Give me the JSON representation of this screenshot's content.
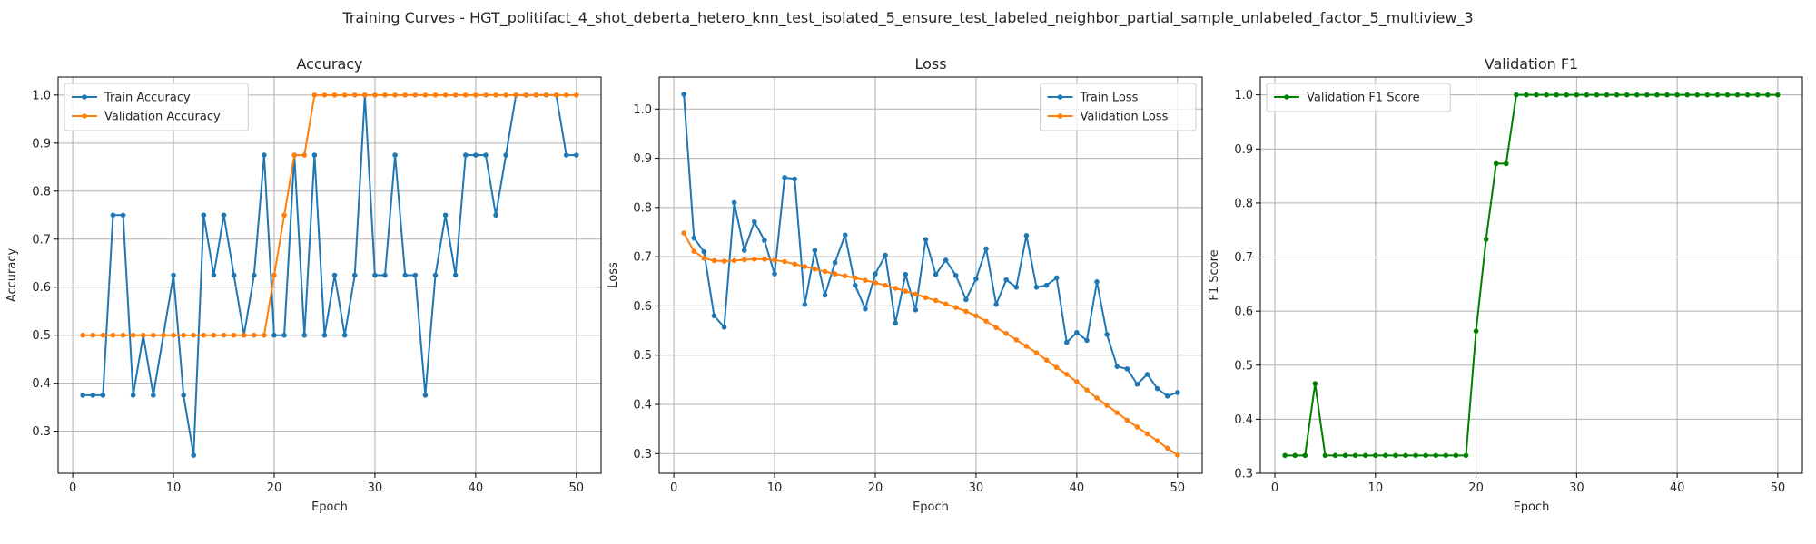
{
  "figure": {
    "suptitle": "Training Curves - HGT_politifact_4_shot_deberta_hetero_knn_test_isolated_5_ensure_test_labeled_neighbor_partial_sample_unlabeled_factor_5_multiview_3"
  },
  "colors": {
    "blue": "#1f77b4",
    "orange": "#ff7f0e",
    "green": "#008000"
  },
  "chart_data": [
    {
      "type": "line",
      "title": "Accuracy",
      "xlabel": "Epoch",
      "ylabel": "Accuracy",
      "xlim": [
        -1.45,
        52.45
      ],
      "ylim": [
        0.2125,
        1.0375
      ],
      "xticks": [
        0,
        10,
        20,
        30,
        40,
        50
      ],
      "yticks": [
        0.3,
        0.4,
        0.5,
        0.6,
        0.7,
        0.8,
        0.9,
        1.0
      ],
      "yticklabels": [
        "0.3",
        "0.4",
        "0.5",
        "0.6",
        "0.7",
        "0.8",
        "0.9",
        "1.0"
      ],
      "grid": true,
      "legend": "upper-left",
      "x": [
        1,
        2,
        3,
        4,
        5,
        6,
        7,
        8,
        9,
        10,
        11,
        12,
        13,
        14,
        15,
        16,
        17,
        18,
        19,
        20,
        21,
        22,
        23,
        24,
        25,
        26,
        27,
        28,
        29,
        30,
        31,
        32,
        33,
        34,
        35,
        36,
        37,
        38,
        39,
        40,
        41,
        42,
        43,
        44,
        45,
        46,
        47,
        48,
        49,
        50
      ],
      "series": [
        {
          "name": "Train Accuracy",
          "color": "#1f77b4",
          "values": [
            0.375,
            0.375,
            0.375,
            0.75,
            0.75,
            0.375,
            0.5,
            0.375,
            0.5,
            0.625,
            0.375,
            0.25,
            0.75,
            0.625,
            0.75,
            0.625,
            0.5,
            0.625,
            0.875,
            0.5,
            0.5,
            0.875,
            0.5,
            0.875,
            0.5,
            0.625,
            0.5,
            0.625,
            1.0,
            0.625,
            0.625,
            0.875,
            0.625,
            0.625,
            0.375,
            0.625,
            0.75,
            0.625,
            0.875,
            0.875,
            0.875,
            0.75,
            0.875,
            1.0,
            1.0,
            1.0,
            1.0,
            1.0,
            0.875,
            0.875
          ]
        },
        {
          "name": "Validation Accuracy",
          "color": "#ff7f0e",
          "values": [
            0.5,
            0.5,
            0.5,
            0.5,
            0.5,
            0.5,
            0.5,
            0.5,
            0.5,
            0.5,
            0.5,
            0.5,
            0.5,
            0.5,
            0.5,
            0.5,
            0.5,
            0.5,
            0.5,
            0.625,
            0.75,
            0.875,
            0.875,
            1.0,
            1.0,
            1.0,
            1.0,
            1.0,
            1.0,
            1.0,
            1.0,
            1.0,
            1.0,
            1.0,
            1.0,
            1.0,
            1.0,
            1.0,
            1.0,
            1.0,
            1.0,
            1.0,
            1.0,
            1.0,
            1.0,
            1.0,
            1.0,
            1.0,
            1.0,
            1.0
          ]
        }
      ]
    },
    {
      "type": "line",
      "title": "Loss",
      "xlabel": "Epoch",
      "ylabel": "Loss",
      "xlim": [
        -1.45,
        52.45
      ],
      "ylim": [
        0.26,
        1.065
      ],
      "xticks": [
        0,
        10,
        20,
        30,
        40,
        50
      ],
      "yticks": [
        0.3,
        0.4,
        0.5,
        0.6,
        0.7,
        0.8,
        0.9,
        1.0
      ],
      "yticklabels": [
        "0.3",
        "0.4",
        "0.5",
        "0.6",
        "0.7",
        "0.8",
        "0.9",
        "1.0"
      ],
      "grid": true,
      "legend": "upper-right",
      "x": [
        1,
        2,
        3,
        4,
        5,
        6,
        7,
        8,
        9,
        10,
        11,
        12,
        13,
        14,
        15,
        16,
        17,
        18,
        19,
        20,
        21,
        22,
        23,
        24,
        25,
        26,
        27,
        28,
        29,
        30,
        31,
        32,
        33,
        34,
        35,
        36,
        37,
        38,
        39,
        40,
        41,
        42,
        43,
        44,
        45,
        46,
        47,
        48,
        49,
        50
      ],
      "series": [
        {
          "name": "Train Loss",
          "color": "#1f77b4",
          "values": [
            1.03,
            0.738,
            0.71,
            0.58,
            0.557,
            0.81,
            0.713,
            0.771,
            0.733,
            0.665,
            0.861,
            0.858,
            0.603,
            0.713,
            0.622,
            0.688,
            0.744,
            0.642,
            0.594,
            0.665,
            0.703,
            0.565,
            0.664,
            0.592,
            0.735,
            0.664,
            0.693,
            0.662,
            0.613,
            0.655,
            0.716,
            0.603,
            0.653,
            0.638,
            0.743,
            0.638,
            0.642,
            0.657,
            0.526,
            0.546,
            0.53,
            0.649,
            0.542,
            0.477,
            0.472,
            0.441,
            0.461,
            0.432,
            0.417,
            0.424
          ]
        },
        {
          "name": "Validation Loss",
          "color": "#ff7f0e",
          "values": [
            0.748,
            0.711,
            0.697,
            0.692,
            0.691,
            0.692,
            0.694,
            0.695,
            0.695,
            0.693,
            0.69,
            0.685,
            0.68,
            0.675,
            0.67,
            0.665,
            0.661,
            0.657,
            0.652,
            0.647,
            0.642,
            0.636,
            0.63,
            0.624,
            0.617,
            0.611,
            0.604,
            0.597,
            0.589,
            0.58,
            0.569,
            0.556,
            0.544,
            0.531,
            0.518,
            0.505,
            0.49,
            0.475,
            0.461,
            0.446,
            0.429,
            0.413,
            0.398,
            0.383,
            0.368,
            0.354,
            0.34,
            0.326,
            0.311,
            0.297
          ]
        }
      ]
    },
    {
      "type": "line",
      "title": "Validation F1",
      "xlabel": "Epoch",
      "ylabel": "F1 Score",
      "xlim": [
        -1.45,
        52.45
      ],
      "ylim": [
        0.3,
        1.033
      ],
      "xticks": [
        0,
        10,
        20,
        30,
        40,
        50
      ],
      "yticks": [
        0.3,
        0.4,
        0.5,
        0.6,
        0.7,
        0.8,
        0.9,
        1.0
      ],
      "yticklabels": [
        "0.3",
        "0.4",
        "0.5",
        "0.6",
        "0.7",
        "0.8",
        "0.9",
        "1.0"
      ],
      "grid": true,
      "legend": "upper-left",
      "x": [
        1,
        2,
        3,
        4,
        5,
        6,
        7,
        8,
        9,
        10,
        11,
        12,
        13,
        14,
        15,
        16,
        17,
        18,
        19,
        20,
        21,
        22,
        23,
        24,
        25,
        26,
        27,
        28,
        29,
        30,
        31,
        32,
        33,
        34,
        35,
        36,
        37,
        38,
        39,
        40,
        41,
        42,
        43,
        44,
        45,
        46,
        47,
        48,
        49,
        50
      ],
      "series": [
        {
          "name": "Validation F1 Score",
          "color": "#008000",
          "values": [
            0.333,
            0.333,
            0.333,
            0.466,
            0.333,
            0.333,
            0.333,
            0.333,
            0.333,
            0.333,
            0.333,
            0.333,
            0.333,
            0.333,
            0.333,
            0.333,
            0.333,
            0.333,
            0.333,
            0.563,
            0.733,
            0.873,
            0.873,
            1.0,
            1.0,
            1.0,
            1.0,
            1.0,
            1.0,
            1.0,
            1.0,
            1.0,
            1.0,
            1.0,
            1.0,
            1.0,
            1.0,
            1.0,
            1.0,
            1.0,
            1.0,
            1.0,
            1.0,
            1.0,
            1.0,
            1.0,
            1.0,
            1.0,
            1.0,
            1.0
          ]
        }
      ]
    }
  ]
}
